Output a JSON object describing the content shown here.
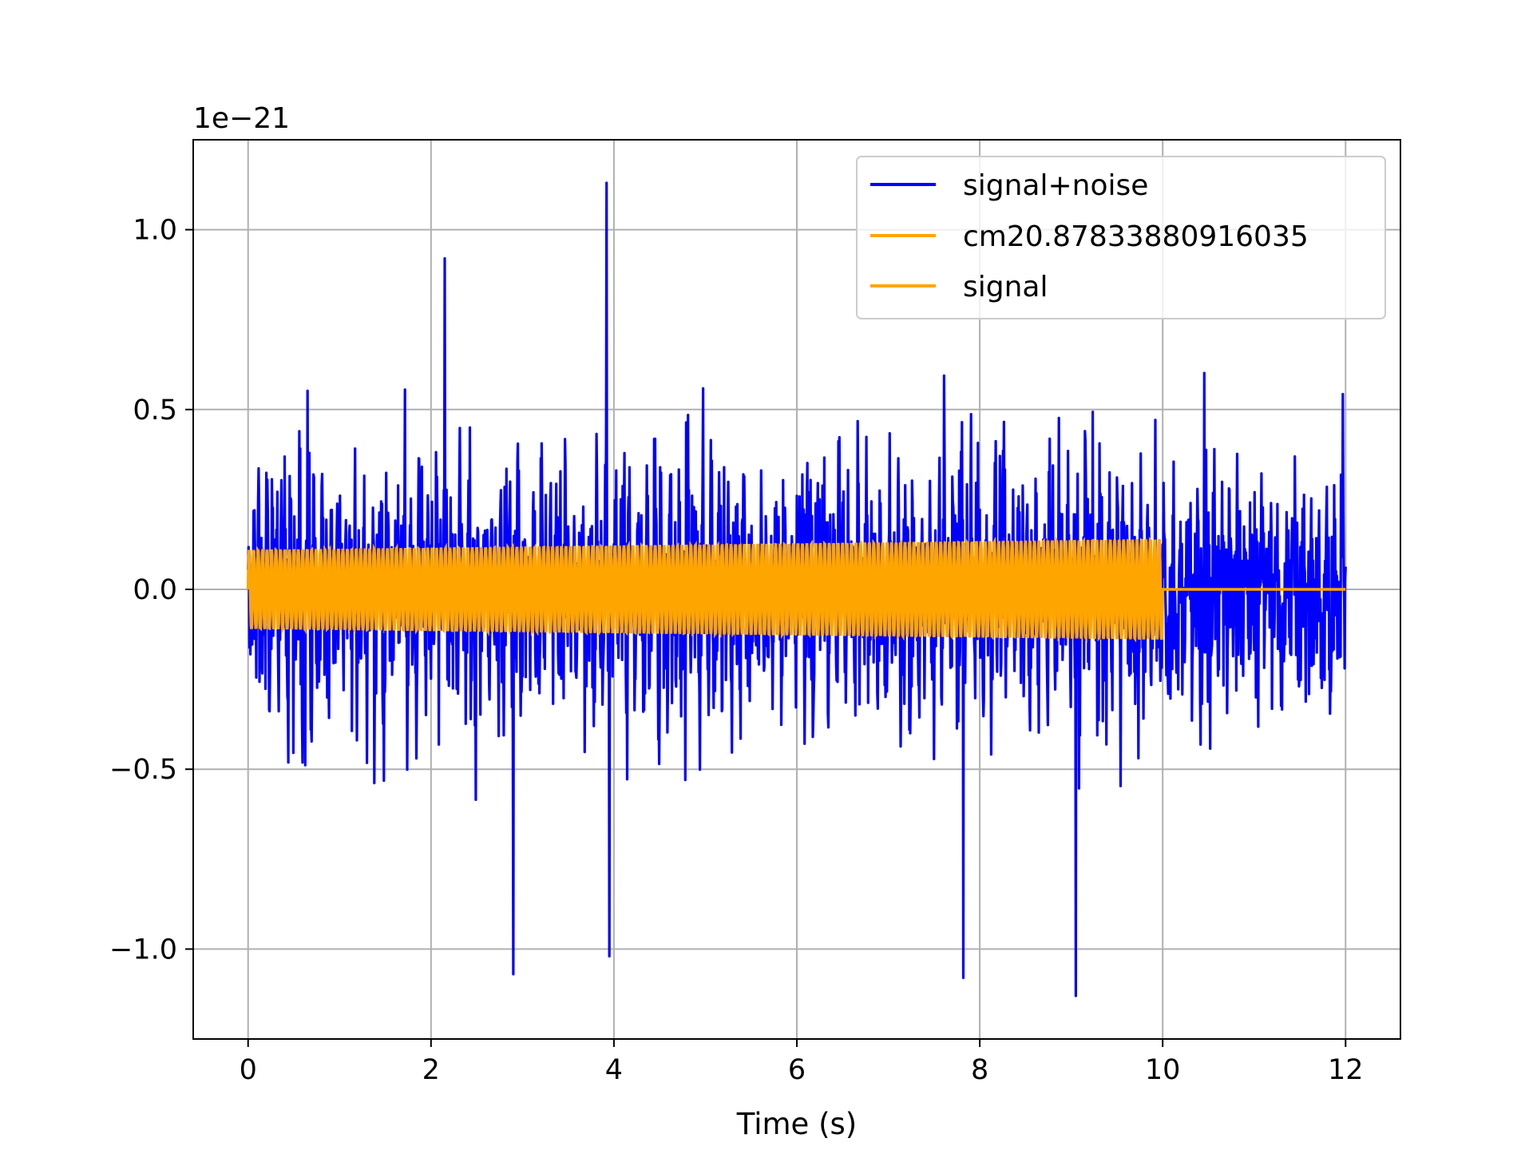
{
  "chart_data": {
    "type": "line",
    "title": "",
    "xlabel": "Time (s)",
    "ylabel": "",
    "y_offset_label": "1e−21",
    "xlim": [
      -0.6,
      12.6
    ],
    "ylim": [
      -1.25,
      1.25
    ],
    "x_ticks": [
      0,
      2,
      4,
      6,
      8,
      10,
      12
    ],
    "x_tick_labels": [
      "0",
      "2",
      "4",
      "6",
      "8",
      "10",
      "12"
    ],
    "y_ticks": [
      -1.0,
      -0.5,
      0.0,
      0.5,
      1.0
    ],
    "y_tick_labels": [
      "−1.0",
      "−0.5",
      "0.0",
      "0.5",
      "1.0"
    ],
    "grid": true,
    "legend_position": "top-right",
    "series": [
      {
        "name": "signal+noise",
        "color": "#0000ff",
        "description_values": {
          "x_range": [
            0,
            12
          ],
          "amplitude_typical": 0.45,
          "max": 1.13,
          "min": -1.13,
          "peaks": [
            {
              "x": 3.92,
              "y": 1.13
            },
            {
              "x": 2.15,
              "y": 0.92
            },
            {
              "x": 9.05,
              "y": -1.13
            },
            {
              "x": 7.82,
              "y": -1.08
            },
            {
              "x": 2.9,
              "y": -1.07
            },
            {
              "x": 3.95,
              "y": -1.02
            }
          ]
        }
      },
      {
        "name": "cm20.87833880916035",
        "color": "#ffa500",
        "description_values": {
          "x_range": [
            0,
            10
          ],
          "amplitude_start": 0.11,
          "amplitude_end": 0.14
        }
      },
      {
        "name": "signal",
        "color": "#ffa500",
        "description_values": {
          "x_range": [
            0,
            12
          ],
          "amplitude_start": 0.11,
          "amplitude_end": 0.14,
          "zero_after": 10
        }
      }
    ]
  }
}
